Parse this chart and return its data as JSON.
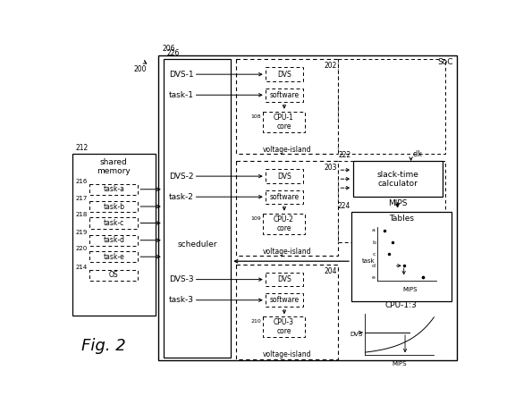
{
  "soc_label": "SoC",
  "fig_label": "200",
  "outer_box_label": "206",
  "scheduler_box_label": "226",
  "scheduler_text": "scheduler",
  "shared_memory_label": "212",
  "shared_memory_text": "shared\nmemory",
  "os_label": "214",
  "os_text": "OS",
  "tasks": [
    {
      "label": "216",
      "text": "task-a"
    },
    {
      "label": "217",
      "text": "task-b"
    },
    {
      "label": "218",
      "text": "task-c"
    },
    {
      "label": "219",
      "text": "task-d"
    },
    {
      "label": "220",
      "text": "task-e"
    }
  ],
  "vi_labels": [
    "202",
    "203",
    "204"
  ],
  "dvs_inputs": [
    "DVS-1",
    "DVS-2",
    "DVS-3"
  ],
  "task_inputs": [
    "task-1",
    "task-2",
    "task-3"
  ],
  "cpu_labels": [
    "108",
    "109",
    "210"
  ],
  "cpu_texts": [
    "CPU-1\ncore",
    "CPU-2\ncore",
    "CPU-3\ncore"
  ],
  "slack_time_label": "222",
  "slack_time_text": "slack-time\ncalculator",
  "clk_text": "clk",
  "mips_text": "MIPS",
  "tables_label": "224",
  "tables_text": "Tables",
  "cpu_13_text": "CPU-1:3",
  "dvs_axis_text": "DVS",
  "task_axis_text": "task",
  "task_scatter_labels": [
    "a",
    "b",
    "c",
    "d",
    "e"
  ],
  "fig_text": "Fig. 2",
  "bg_color": "#ffffff"
}
